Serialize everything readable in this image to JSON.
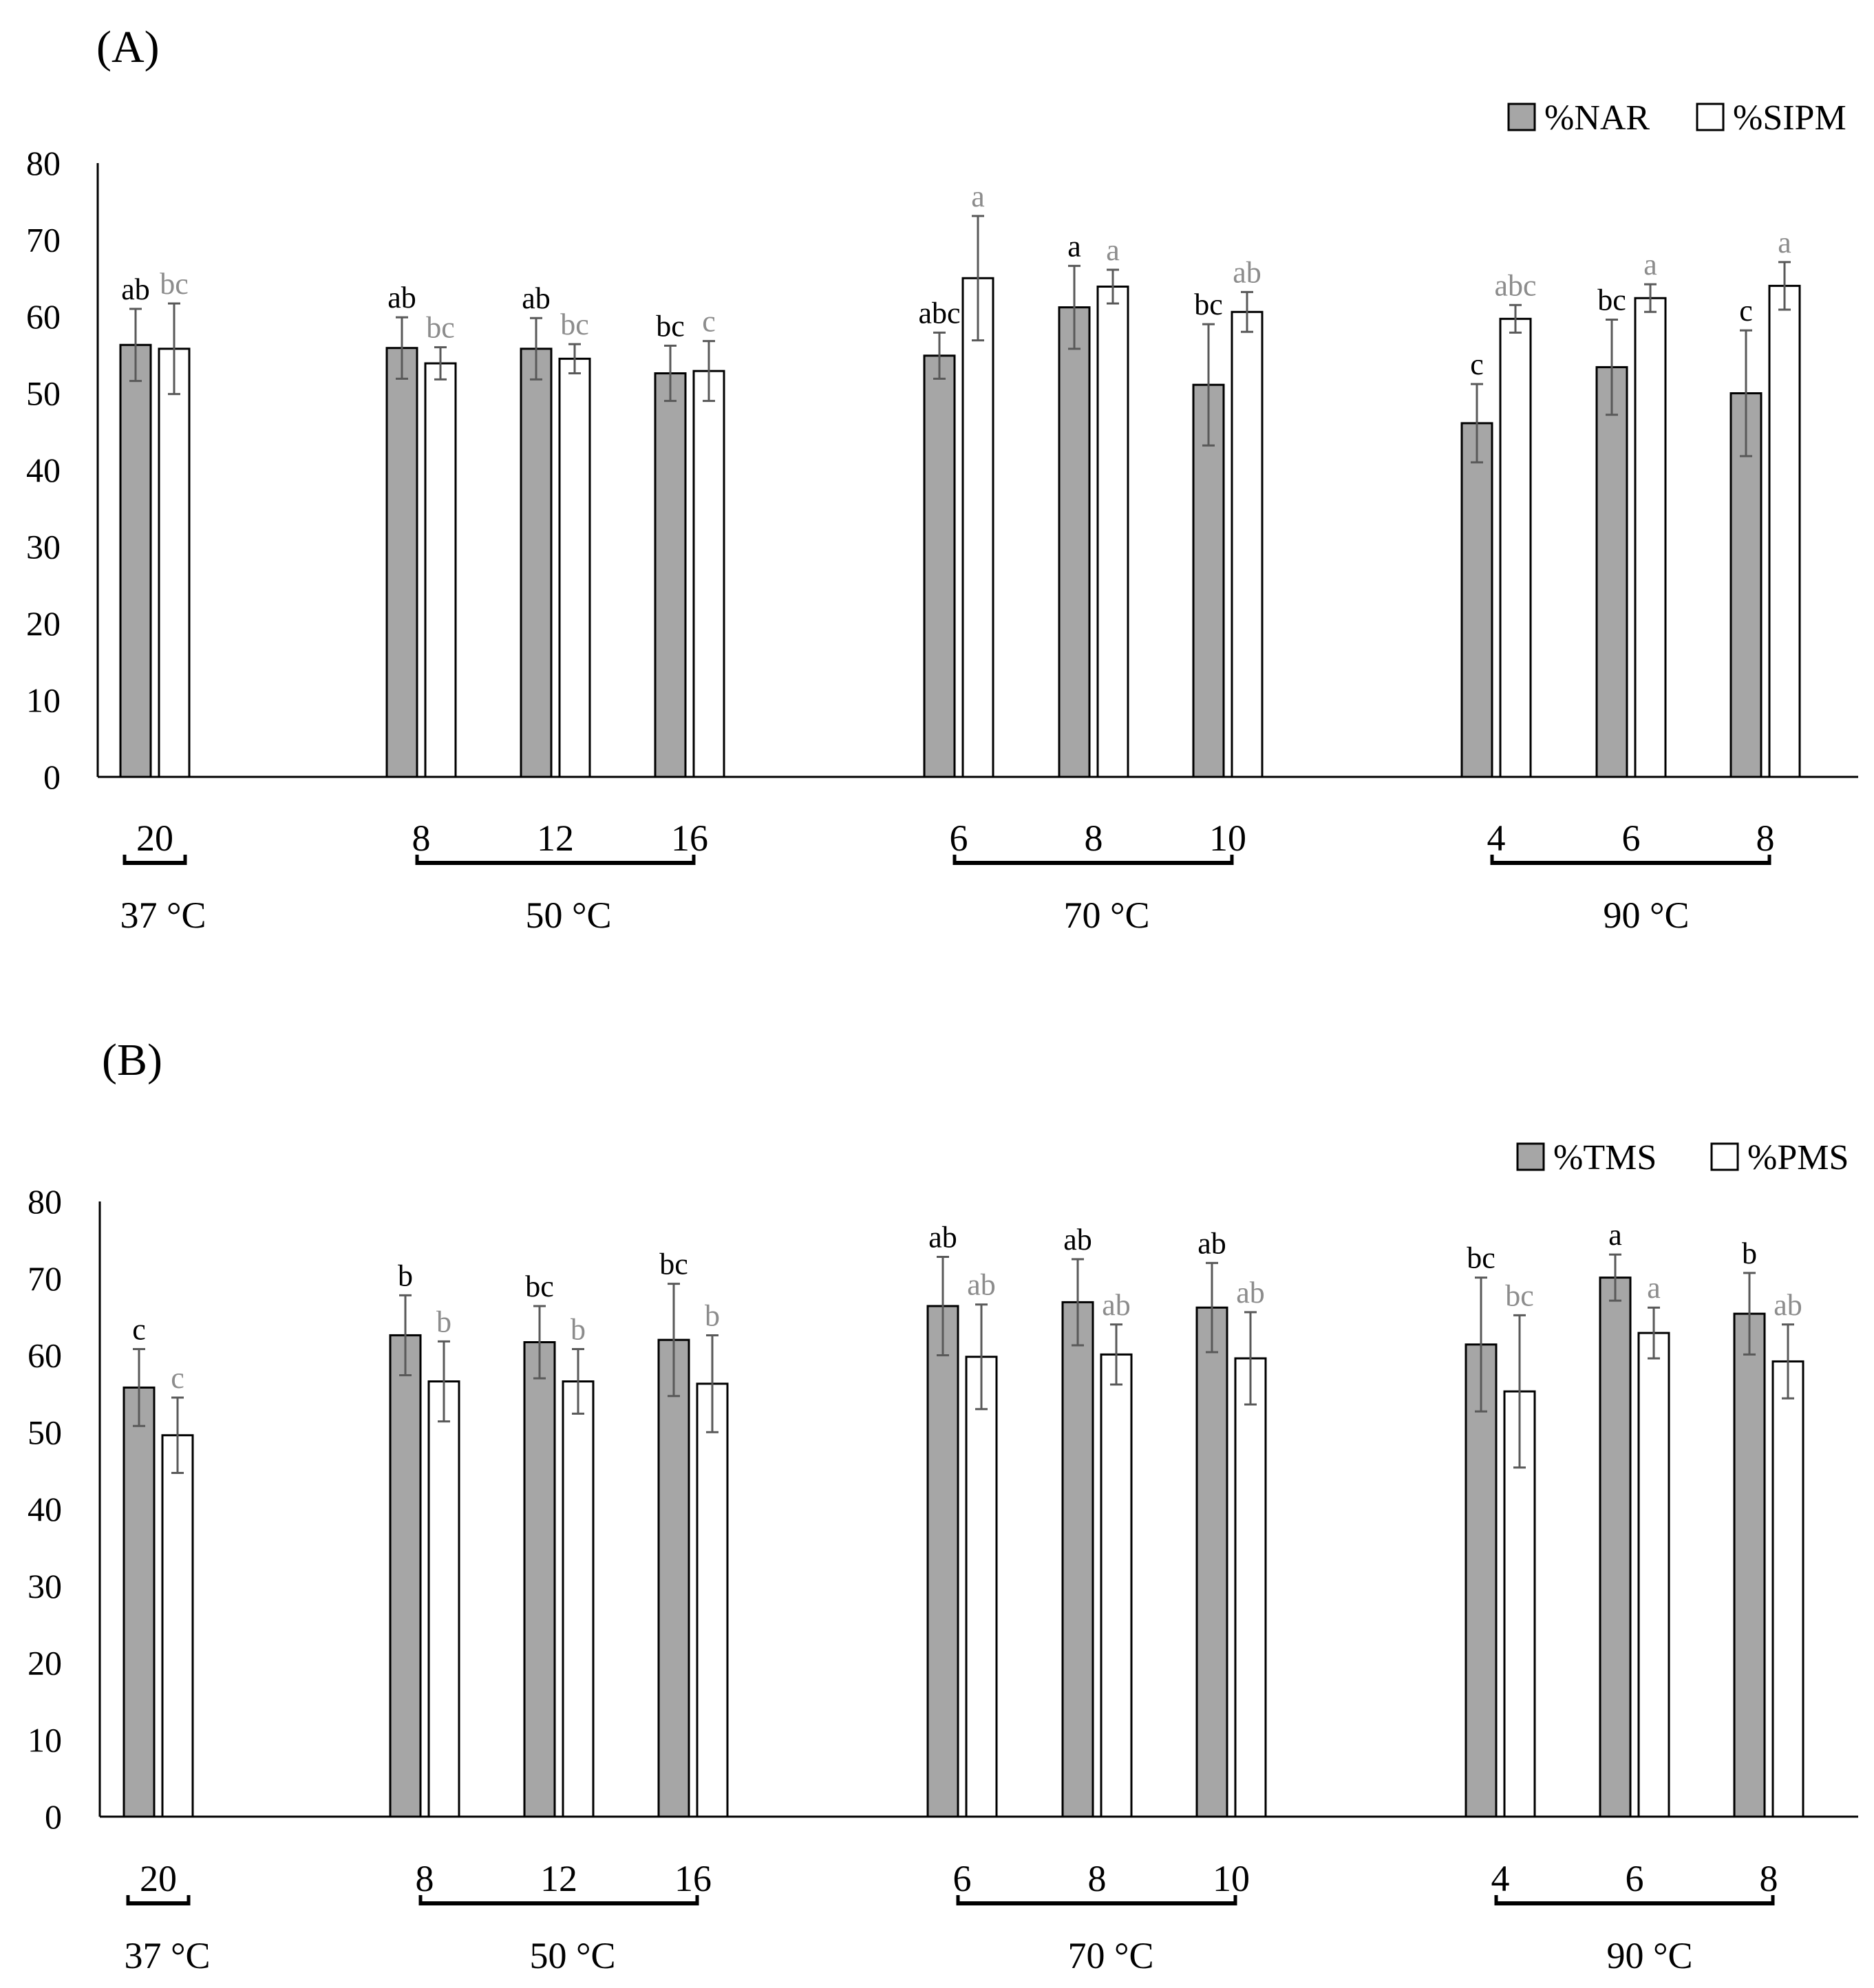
{
  "figure": {
    "colors": {
      "gray_bar": "#a6a6a6",
      "white_bar": "#ffffff",
      "outline": "#000000",
      "error": "#595959",
      "sig_second": "#8c8c8c"
    },
    "charts": [
      "A",
      "B"
    ]
  },
  "chart_data": [
    {
      "type": "bar",
      "panel": "(A)",
      "ylim": [
        0,
        80
      ],
      "yticks": [
        "0",
        "10",
        "20",
        "30",
        "40",
        "50",
        "60",
        "70",
        "80"
      ],
      "legend": [
        "%NAR",
        "%SIPM"
      ],
      "categories": [
        "20",
        "8",
        "12",
        "16",
        "6",
        "8",
        "10",
        "4",
        "6",
        "8"
      ],
      "groups": [
        {
          "label": "37 °C",
          "first": 0,
          "last": 0
        },
        {
          "label": "50 °C",
          "first": 1,
          "last": 3
        },
        {
          "label": "70 °C",
          "first": 4,
          "last": 6
        },
        {
          "label": "90 °C",
          "first": 7,
          "last": 9
        }
      ],
      "series": [
        {
          "name": "%NAR",
          "values": [
            56.3,
            55.9,
            55.8,
            52.6,
            54.9,
            61.2,
            51.1,
            46.1,
            53.4,
            50.0
          ],
          "errors": [
            4.7,
            4.0,
            4.0,
            3.6,
            3.0,
            5.4,
            7.9,
            5.1,
            6.2,
            8.2
          ],
          "labels": [
            "ab",
            "ab",
            "ab",
            "bc",
            "abc",
            "a",
            "bc",
            "c",
            "bc",
            "c"
          ]
        },
        {
          "name": "%SIPM",
          "values": [
            55.8,
            53.9,
            54.5,
            52.9,
            65.0,
            63.9,
            60.6,
            59.7,
            62.4,
            64.0
          ],
          "errors": [
            5.9,
            2.1,
            1.9,
            3.9,
            8.1,
            2.2,
            2.6,
            1.8,
            1.8,
            3.1
          ],
          "labels": [
            "bc",
            "bc",
            "bc",
            "c",
            "a",
            "a",
            "ab",
            "abc",
            "a",
            "a"
          ]
        }
      ]
    },
    {
      "type": "bar",
      "panel": "(B)",
      "ylim": [
        0,
        80
      ],
      "yticks": [
        "0",
        "10",
        "20",
        "30",
        "40",
        "50",
        "60",
        "70",
        "80"
      ],
      "legend": [
        "%TMS",
        "%PMS"
      ],
      "categories": [
        "20",
        "8",
        "12",
        "16",
        "6",
        "8",
        "10",
        "4",
        "6",
        "8"
      ],
      "groups": [
        {
          "label": "37 °C",
          "first": 0,
          "last": 0
        },
        {
          "label": "50 °C",
          "first": 1,
          "last": 3
        },
        {
          "label": "70 °C",
          "first": 4,
          "last": 6
        },
        {
          "label": "90 °C",
          "first": 7,
          "last": 9
        }
      ],
      "series": [
        {
          "name": "%TMS",
          "values": [
            55.8,
            62.6,
            61.7,
            62.0,
            66.4,
            66.9,
            66.2,
            61.4,
            70.1,
            65.4
          ],
          "errors": [
            5.0,
            5.2,
            4.7,
            7.3,
            6.4,
            5.6,
            5.8,
            8.7,
            3.0,
            5.3
          ],
          "labels": [
            "c",
            "b",
            "bc",
            "bc",
            "ab",
            "ab",
            "ab",
            "bc",
            "a",
            "b"
          ]
        },
        {
          "name": "%PMS",
          "values": [
            49.6,
            56.6,
            56.6,
            56.3,
            59.8,
            60.1,
            59.6,
            55.3,
            62.9,
            59.2
          ],
          "errors": [
            4.9,
            5.2,
            4.2,
            6.3,
            6.8,
            3.9,
            6.0,
            9.9,
            3.3,
            4.8
          ],
          "labels": [
            "c",
            "b",
            "b",
            "b",
            "ab",
            "ab",
            "ab",
            "bc",
            "a",
            "ab"
          ]
        }
      ]
    }
  ]
}
